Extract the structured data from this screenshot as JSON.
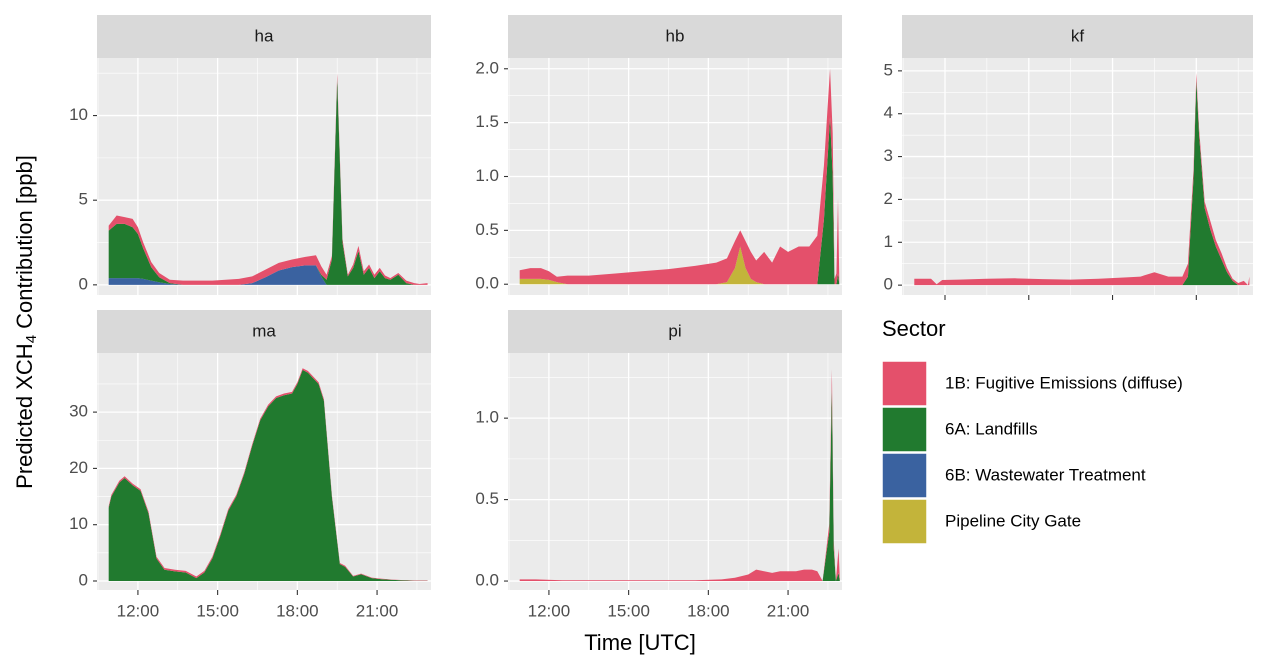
{
  "chart_data": {
    "type": "area",
    "ylabel": [
      "Predicted XCH",
      "4",
      " Contribution [ppb]"
    ],
    "xlabel": "Time [UTC]",
    "legend_title": "Sector",
    "series": [
      {
        "name": "1B: Fugitive Emissions (diffuse)",
        "color": "#e4506b"
      },
      {
        "name": "6A: Landfills",
        "color": "#217a2f"
      },
      {
        "name": "6B: Wastewater Treatment",
        "color": "#3a62a0"
      },
      {
        "name": "Pipeline City Gate",
        "color": "#c3b43a"
      }
    ],
    "xlim": [
      10.46,
      23.03
    ],
    "xticks": [
      {
        "value": 12,
        "label": "12:00"
      },
      {
        "value": 15,
        "label": "15:00"
      },
      {
        "value": 18,
        "label": "18:00"
      },
      {
        "value": 21,
        "label": "21:00"
      }
    ],
    "grid": true,
    "facets": [
      {
        "title": "ha",
        "ylim": [
          -0.6,
          13.4
        ],
        "yticks": [
          0,
          5,
          10
        ],
        "x": [
          10.9,
          11.2,
          11.5,
          11.8,
          12.0,
          12.2,
          12.5,
          12.8,
          13.2,
          13.7,
          14.2,
          14.8,
          15.3,
          15.8,
          16.3,
          16.8,
          17.3,
          17.8,
          18.3,
          18.7,
          18.9,
          19.1,
          19.3,
          19.5,
          19.7,
          19.9,
          20.1,
          20.3,
          20.5,
          20.7,
          20.9,
          21.1,
          21.3,
          21.5,
          21.8,
          22.1,
          22.4,
          22.6,
          22.9
        ],
        "series": [
          {
            "values": [
              0.3,
              0.5,
              0.4,
              0.5,
              0.4,
              0.35,
              0.3,
              0.25,
              0.2,
              0.25,
              0.25,
              0.25,
              0.3,
              0.35,
              0.4,
              0.45,
              0.45,
              0.45,
              0.5,
              0.6,
              0.5,
              0.3,
              0.2,
              0.3,
              0.2,
              0.1,
              0.2,
              0.3,
              0.2,
              0.2,
              0.2,
              0.2,
              0.15,
              0.1,
              0.1,
              0.15,
              0.1,
              0.05,
              0.1
            ]
          },
          {
            "values": [
              2.8,
              3.2,
              3.2,
              3.0,
              2.6,
              1.8,
              0.8,
              0.3,
              0.05,
              0,
              0,
              0,
              0,
              0,
              0,
              0,
              0,
              0,
              0,
              0,
              0.1,
              0.3,
              1.5,
              12.2,
              2.5,
              0.5,
              1.0,
              2.0,
              0.6,
              1.0,
              0.4,
              0.8,
              0.4,
              0.3,
              0.6,
              0.1,
              0,
              0,
              0
            ]
          },
          {
            "values": [
              0.4,
              0.4,
              0.4,
              0.4,
              0.4,
              0.35,
              0.25,
              0.15,
              0.05,
              0,
              0,
              0,
              0,
              0,
              0.1,
              0.45,
              0.85,
              1.05,
              1.15,
              1.15,
              0.5,
              0,
              0,
              0,
              0,
              0,
              0,
              0,
              0,
              0,
              0,
              0,
              0,
              0,
              0,
              0,
              0,
              0,
              0
            ]
          },
          {
            "values": [
              0,
              0,
              0,
              0,
              0,
              0,
              0,
              0,
              0,
              0,
              0,
              0,
              0,
              0,
              0,
              0,
              0,
              0,
              0,
              0,
              0,
              0,
              0,
              0,
              0,
              0,
              0,
              0,
              0,
              0,
              0,
              0,
              0,
              0,
              0,
              0,
              0,
              0,
              0
            ]
          }
        ]
      },
      {
        "title": "hb",
        "ylim": [
          -0.1,
          2.1
        ],
        "yticks": [
          {
            "value": 0,
            "label": "0.0"
          },
          0.5,
          {
            "value": 1,
            "label": "1.0"
          },
          1.5,
          {
            "value": 2,
            "label": "2.0"
          }
        ],
        "x": [
          10.9,
          11.3,
          11.7,
          12.0,
          12.3,
          12.7,
          13.5,
          14.5,
          15.5,
          16.5,
          17.5,
          18.3,
          18.7,
          19.0,
          19.2,
          19.4,
          19.6,
          19.8,
          20.1,
          20.4,
          20.7,
          21.0,
          21.4,
          21.8,
          22.1,
          22.35,
          22.58,
          22.68,
          22.75,
          22.82,
          22.88,
          22.93
        ],
        "series": [
          {
            "values": [
              0.08,
              0.1,
              0.1,
              0.08,
              0.05,
              0.08,
              0.08,
              0.1,
              0.12,
              0.14,
              0.17,
              0.2,
              0.22,
              0.25,
              0.15,
              0.25,
              0.25,
              0.2,
              0.3,
              0.2,
              0.35,
              0.3,
              0.35,
              0.35,
              0.45,
              0.5,
              0.45,
              0.4,
              0.05,
              0.1,
              0.7,
              0
            ]
          },
          {
            "values": [
              0,
              0,
              0,
              0,
              0,
              0,
              0,
              0,
              0,
              0,
              0,
              0,
              0,
              0,
              0,
              0,
              0,
              0,
              0,
              0,
              0,
              0,
              0,
              0,
              0,
              0.6,
              1.55,
              1.0,
              0,
              0,
              0.1,
              0
            ]
          },
          {
            "values": [
              0,
              0,
              0,
              0,
              0,
              0,
              0,
              0,
              0,
              0,
              0,
              0,
              0,
              0,
              0,
              0,
              0,
              0,
              0,
              0,
              0,
              0,
              0,
              0,
              0,
              0,
              0,
              0,
              0,
              0,
              0,
              0
            ]
          },
          {
            "values": [
              0.05,
              0.05,
              0.05,
              0.04,
              0.02,
              0,
              0,
              0,
              0,
              0,
              0,
              0,
              0.02,
              0.15,
              0.35,
              0.15,
              0.05,
              0.02,
              0,
              0,
              0,
              0,
              0,
              0,
              0,
              0,
              0,
              0,
              0,
              0,
              0,
              0
            ]
          }
        ]
      },
      {
        "title": "kf",
        "ylim": [
          -0.23,
          5.3
        ],
        "yticks": [
          0,
          1,
          2,
          3,
          4,
          5
        ],
        "x": [
          10.9,
          11.5,
          11.7,
          11.9,
          12.5,
          13.5,
          14.5,
          15.5,
          16.5,
          17.5,
          18.5,
          19.0,
          19.5,
          20.0,
          20.5,
          20.7,
          20.9,
          21.0,
          21.1,
          21.3,
          21.5,
          21.7,
          21.9,
          22.1,
          22.3,
          22.5,
          22.7,
          22.85,
          22.9
        ],
        "series": [
          {
            "values": [
              0.15,
              0.15,
              0.02,
              0.12,
              0.13,
              0.15,
              0.16,
              0.14,
              0.13,
              0.15,
              0.18,
              0.2,
              0.3,
              0.2,
              0.2,
              0.3,
              0.2,
              0.15,
              0.15,
              0.15,
              0.2,
              0.15,
              0.15,
              0.1,
              0.05,
              0.05,
              0.1,
              0,
              0.2
            ]
          },
          {
            "values": [
              0,
              0,
              0,
              0,
              0,
              0,
              0,
              0,
              0,
              0,
              0,
              0,
              0,
              0,
              0,
              0.2,
              2.5,
              4.8,
              3.5,
              1.8,
              1.3,
              0.9,
              0.6,
              0.3,
              0.1,
              0,
              0,
              0,
              0
            ]
          },
          {
            "values": [
              0,
              0,
              0,
              0,
              0,
              0,
              0,
              0,
              0,
              0,
              0,
              0,
              0,
              0,
              0,
              0,
              0,
              0,
              0,
              0,
              0,
              0,
              0,
              0,
              0,
              0,
              0,
              0,
              0
            ]
          },
          {
            "values": [
              0,
              0,
              0,
              0,
              0,
              0,
              0,
              0,
              0,
              0,
              0,
              0,
              0,
              0,
              0,
              0,
              0,
              0,
              0,
              0,
              0,
              0,
              0,
              0,
              0,
              0,
              0,
              0,
              0
            ]
          }
        ]
      },
      {
        "title": "ma",
        "ylim": [
          -1.6,
          40.5
        ],
        "yticks": [
          0,
          10,
          20,
          30
        ],
        "x": [
          10.9,
          11.0,
          11.3,
          11.5,
          11.8,
          12.1,
          12.4,
          12.7,
          13.0,
          13.4,
          13.8,
          14.2,
          14.5,
          14.8,
          15.1,
          15.4,
          15.7,
          16.0,
          16.3,
          16.6,
          16.9,
          17.2,
          17.5,
          17.8,
          18.0,
          18.2,
          18.4,
          18.6,
          18.8,
          19.0,
          19.3,
          19.6,
          19.8,
          20.1,
          20.4,
          20.8,
          21.2,
          21.6,
          22.0,
          22.4,
          22.9
        ],
        "series": [
          {
            "values": [
              0.3,
              0.3,
              0.3,
              0.3,
              0.3,
              0.3,
              0.3,
              0.3,
              0.3,
              0.3,
              0.3,
              0.3,
              0.3,
              0.3,
              0.3,
              0.3,
              0.3,
              0.3,
              0.3,
              0.3,
              0.3,
              0.3,
              0.3,
              0.3,
              0.3,
              0.3,
              0.3,
              0.3,
              0.3,
              0.3,
              0.3,
              0.2,
              0.2,
              0.1,
              0.1,
              0.1,
              0.1,
              0.05,
              0.05,
              0.05,
              0.05
            ]
          },
          {
            "values": [
              13,
              15,
              17.5,
              18.3,
              17,
              16,
              12,
              4,
              2,
              1.7,
              1.5,
              0.5,
              1.5,
              4,
              8,
              12.5,
              15,
              19,
              24,
              28.5,
              31,
              32.5,
              33,
              33.3,
              35,
              37.5,
              37,
              36,
              35,
              32,
              15,
              3,
              2.5,
              0.8,
              1.2,
              0.5,
              0.3,
              0.2,
              0.1,
              0.05,
              0.05
            ]
          },
          {
            "values": [
              0,
              0,
              0,
              0,
              0,
              0,
              0,
              0,
              0,
              0,
              0,
              0,
              0,
              0,
              0,
              0,
              0,
              0,
              0,
              0,
              0,
              0,
              0,
              0,
              0,
              0,
              0,
              0,
              0,
              0,
              0,
              0,
              0,
              0,
              0,
              0,
              0,
              0,
              0,
              0,
              0
            ]
          },
          {
            "values": [
              0,
              0,
              0,
              0,
              0,
              0,
              0,
              0,
              0,
              0,
              0,
              0,
              0,
              0,
              0,
              0,
              0,
              0,
              0,
              0,
              0,
              0,
              0,
              0,
              0,
              0,
              0,
              0,
              0,
              0,
              0,
              0,
              0,
              0,
              0,
              0,
              0,
              0,
              0,
              0,
              0
            ]
          }
        ]
      },
      {
        "title": "pi",
        "ylim": [
          -0.055,
          1.4
        ],
        "yticks": [
          {
            "value": 0,
            "label": "0.0"
          },
          0.5,
          {
            "value": 1,
            "label": "1.0"
          }
        ],
        "x": [
          10.9,
          11.5,
          12.5,
          13.5,
          14.5,
          15.5,
          16.5,
          17.5,
          18.5,
          19.0,
          19.5,
          19.8,
          20.1,
          20.4,
          20.7,
          21.0,
          21.3,
          21.6,
          21.9,
          22.1,
          22.3,
          22.55,
          22.65,
          22.72,
          22.8,
          22.9,
          22.95
        ],
        "series": [
          {
            "values": [
              0.01,
              0.01,
              0.005,
              0.005,
              0.005,
              0.005,
              0.005,
              0.005,
              0.01,
              0.02,
              0.04,
              0.07,
              0.06,
              0.05,
              0.06,
              0.06,
              0.06,
              0.07,
              0.07,
              0.06,
              0,
              0.05,
              0.1,
              0.05,
              0,
              0.15,
              0
            ]
          },
          {
            "values": [
              0,
              0,
              0,
              0,
              0,
              0,
              0,
              0,
              0,
              0,
              0,
              0,
              0,
              0,
              0,
              0,
              0,
              0,
              0,
              0,
              0,
              0.3,
              1.2,
              0.2,
              0,
              0.05,
              0
            ]
          },
          {
            "values": [
              0,
              0,
              0,
              0,
              0,
              0,
              0,
              0,
              0,
              0,
              0,
              0,
              0,
              0,
              0,
              0,
              0,
              0,
              0,
              0,
              0,
              0,
              0,
              0,
              0,
              0,
              0
            ]
          },
          {
            "values": [
              0,
              0,
              0,
              0,
              0,
              0,
              0,
              0,
              0,
              0,
              0,
              0,
              0,
              0,
              0,
              0,
              0,
              0,
              0,
              0,
              0,
              0,
              0,
              0,
              0,
              0,
              0
            ]
          }
        ]
      }
    ]
  }
}
